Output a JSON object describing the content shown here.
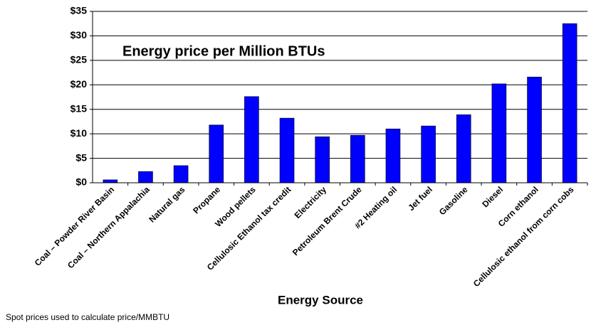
{
  "chart_data": {
    "type": "bar",
    "title": "Energy price per Million BTUs",
    "x_label": "Energy Source",
    "footnote": "Spot prices used to calculate price/MMBTU",
    "categories": [
      "Coal – Powder River Basin",
      "Coal – Northern Appalachia",
      "Natural gas",
      "Propane",
      "Wood pellets",
      "Cellulosic Ethanol tax credit",
      "Electricity",
      "Petroleum Brent Crude",
      "#2 Heating oil",
      "Jet fuel",
      "Gasoline",
      "Diesel",
      "Corn ethanol",
      "Cellulosic ethanol from corn cobs"
    ],
    "values": [
      0.6,
      2.3,
      3.5,
      11.8,
      17.6,
      13.2,
      9.4,
      9.7,
      11.0,
      11.6,
      13.9,
      20.2,
      21.6,
      32.5
    ],
    "color": "#0000ff",
    "ylim": [
      0,
      35
    ],
    "yticks": [
      {
        "value": 0,
        "label": "$0"
      },
      {
        "value": 5,
        "label": "$5"
      },
      {
        "value": 10,
        "label": "$10"
      },
      {
        "value": 15,
        "label": "$15"
      },
      {
        "value": 20,
        "label": "$20"
      },
      {
        "value": 25,
        "label": "$25"
      },
      {
        "value": 30,
        "label": "$30"
      },
      {
        "value": 35,
        "label": "$35"
      }
    ],
    "grid": true
  }
}
